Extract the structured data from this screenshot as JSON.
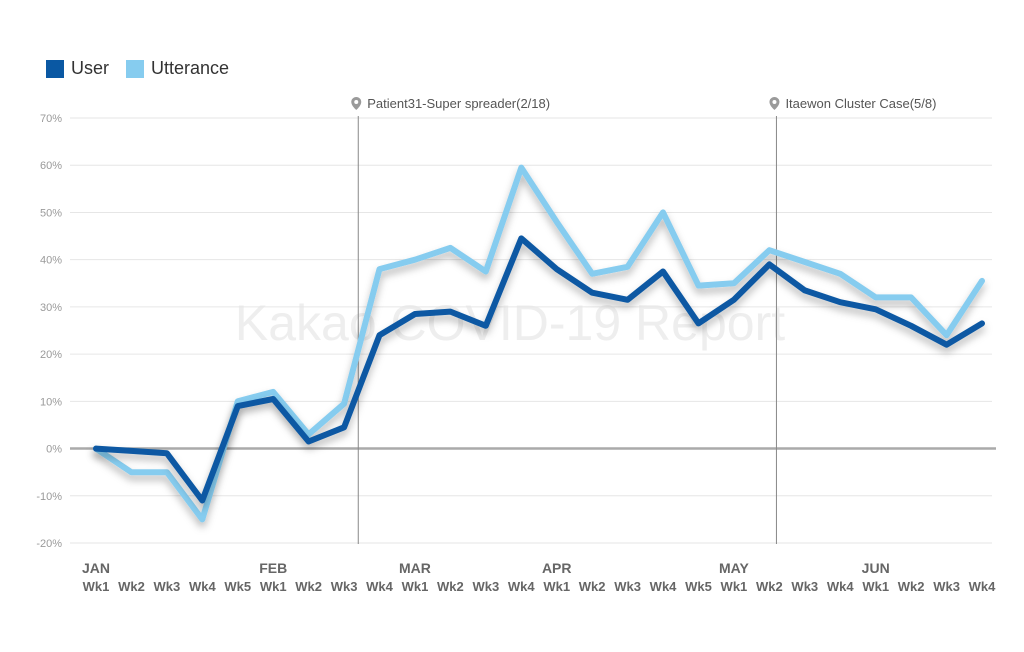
{
  "chart_data": {
    "type": "line",
    "watermark": "Kakao COVID-19 Report",
    "legend": [
      {
        "name": "User",
        "color": "#0a58a3"
      },
      {
        "name": "Utterance",
        "color": "#86ccef"
      }
    ],
    "y_ticks": [
      "70%",
      "60%",
      "50%",
      "40%",
      "30%",
      "20%",
      "10%",
      "0%",
      "-10%",
      "-20%"
    ],
    "ylim": [
      -20,
      70
    ],
    "months": [
      "JAN",
      "FEB",
      "MAR",
      "APR",
      "MAY",
      "JUN"
    ],
    "month_start_index": [
      0,
      5,
      9,
      13,
      18,
      22
    ],
    "categories": [
      "Wk1",
      "Wk2",
      "Wk3",
      "Wk4",
      "Wk5",
      "Wk1",
      "Wk2",
      "Wk3",
      "Wk4",
      "Wk1",
      "Wk2",
      "Wk3",
      "Wk4",
      "Wk1",
      "Wk2",
      "Wk3",
      "Wk4",
      "Wk5",
      "Wk1",
      "Wk2",
      "Wk3",
      "Wk4",
      "Wk1",
      "Wk2",
      "Wk3",
      "Wk4"
    ],
    "series": [
      {
        "name": "Utterance",
        "values": [
          0,
          -5,
          -5,
          -15,
          10,
          12,
          3,
          9.5,
          38,
          40,
          42.5,
          37.5,
          59.5,
          48,
          37,
          38.5,
          50,
          34.5,
          35,
          42,
          39.5,
          37,
          32,
          32,
          24,
          35.5
        ]
      },
      {
        "name": "User",
        "values": [
          0,
          -0.5,
          -1,
          -11,
          9,
          10.5,
          1.5,
          4.5,
          24,
          28.5,
          29,
          26,
          44.5,
          38,
          33,
          31.5,
          37.5,
          26.5,
          31.5,
          39,
          33.5,
          31,
          29.5,
          26,
          22,
          26.5
        ]
      }
    ],
    "annotations": [
      {
        "label": "Patient31-Super spreader(2/18)",
        "x_index": 7.4
      },
      {
        "label": "Itaewon Cluster Case(5/8)",
        "x_index": 19.2
      }
    ]
  }
}
